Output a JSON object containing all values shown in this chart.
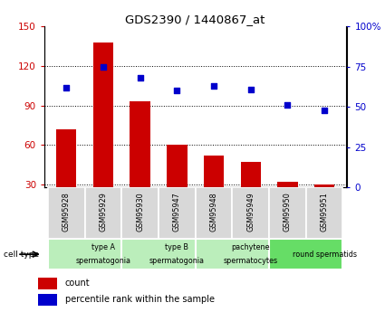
{
  "title": "GDS2390 / 1440867_at",
  "samples": [
    "GSM95928",
    "GSM95929",
    "GSM95930",
    "GSM95947",
    "GSM95948",
    "GSM95949",
    "GSM95950",
    "GSM95951"
  ],
  "counts": [
    72,
    138,
    93,
    60,
    52,
    47,
    32,
    30
  ],
  "percentile_ranks": [
    62,
    75,
    68,
    60,
    63,
    61,
    51,
    48
  ],
  "ylim_left": [
    28,
    150
  ],
  "yticks_left": [
    30,
    60,
    90,
    120,
    150
  ],
  "ylim_right": [
    0,
    100
  ],
  "yticks_right": [
    0,
    25,
    50,
    75,
    100
  ],
  "right_tick_labels": [
    "0",
    "25",
    "50",
    "75",
    "100%"
  ],
  "bar_color": "#cc0000",
  "dot_color": "#0000cc",
  "left_tick_color": "#cc0000",
  "right_tick_color": "#0000cc",
  "cell_types": [
    {
      "label": "type A\nspermatogonia",
      "start": 0,
      "end": 2,
      "color": "#bbeebb"
    },
    {
      "label": "type B\nspermatogonia",
      "start": 2,
      "end": 4,
      "color": "#bbeebb"
    },
    {
      "label": "pachytene\nspermatocytes",
      "start": 4,
      "end": 6,
      "color": "#bbeebb"
    },
    {
      "label": "round spermatids",
      "start": 6,
      "end": 8,
      "color": "#66dd66"
    }
  ],
  "sample_box_color": "#d8d8d8",
  "legend_count_color": "#cc0000",
  "legend_dot_color": "#0000cc",
  "cell_type_label": "cell type",
  "legend_count_label": "count",
  "legend_percentile_label": "percentile rank within the sample",
  "figure_bg": "#ffffff"
}
